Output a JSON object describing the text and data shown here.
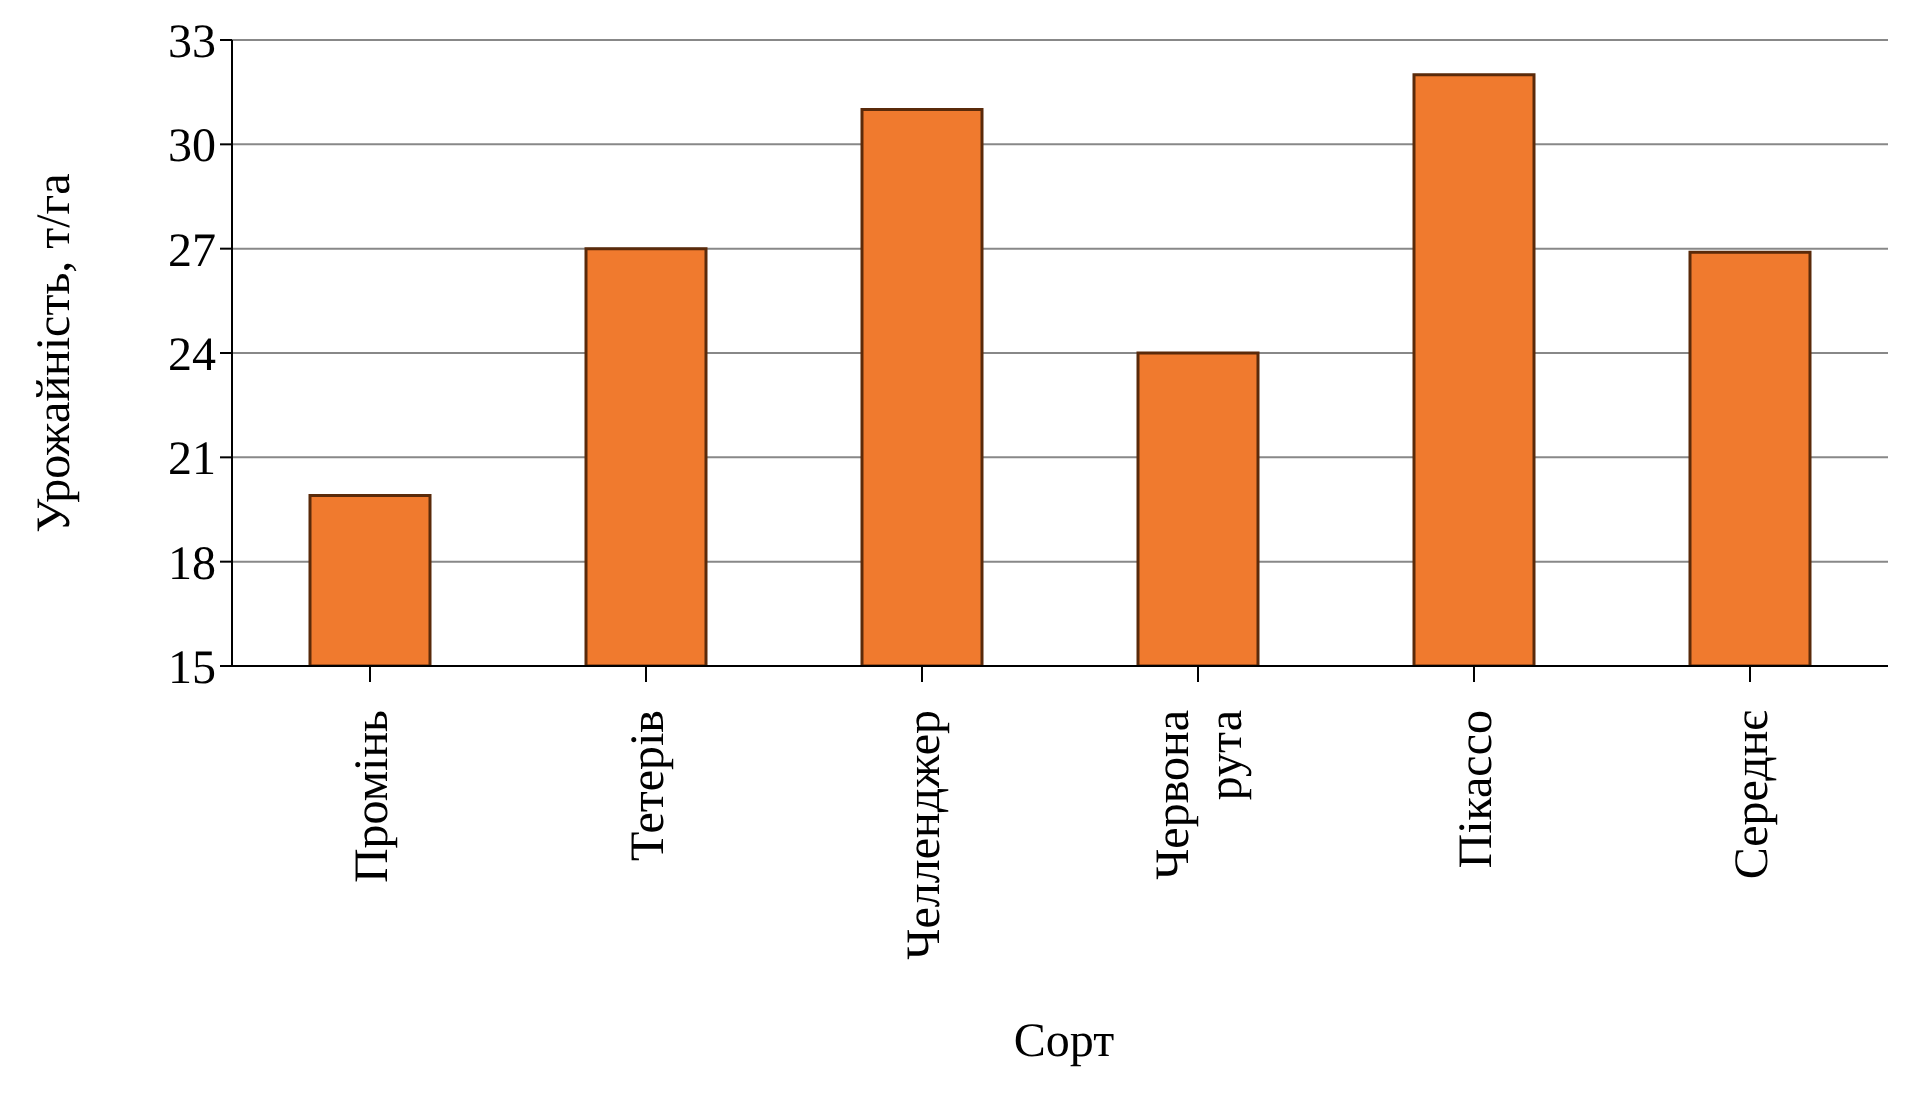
{
  "chart_data": {
    "type": "bar",
    "xlabel": "Сорт",
    "ylabel": "Урожайність, т/га",
    "categories": [
      "Промінь",
      "Тетерів",
      "Челленджер",
      "Червона рута",
      "Пікассо",
      "Середнє"
    ],
    "values": [
      19.9,
      27,
      31,
      24,
      32,
      26.9
    ],
    "color": "#f07a2e",
    "ylim": [
      15,
      33
    ],
    "yticks": [
      15,
      18,
      21,
      24,
      27,
      30,
      33
    ],
    "grid": "y"
  }
}
